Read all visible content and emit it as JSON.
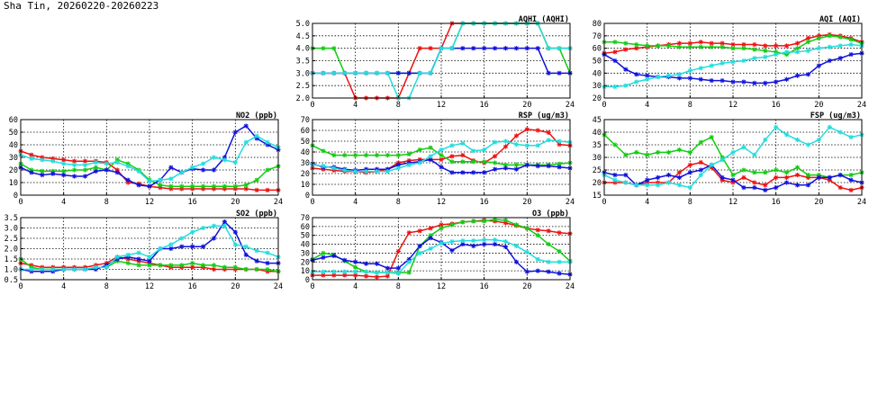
{
  "page": {
    "title": "Sha Tin, 20260220-20260223"
  },
  "colors": {
    "red": "#ee1111",
    "green": "#11cc11",
    "blue": "#1111dd",
    "cyan": "#22dddd",
    "grid": "#000000"
  },
  "chart_data": [
    {
      "id": "aqhi",
      "type": "line",
      "title": "AQHI (AQHI)",
      "xlim": [
        0,
        24
      ],
      "xticks": [
        0,
        4,
        8,
        12,
        16,
        20,
        24
      ],
      "ylim": [
        2,
        5
      ],
      "yticks": [
        2.0,
        2.5,
        3.0,
        3.5,
        4.0,
        4.5,
        5.0
      ],
      "ydecimals": 1,
      "grid": true,
      "series": [
        {
          "color": "red",
          "values": [
            3,
            3,
            3,
            3,
            2,
            2,
            2,
            2,
            2,
            3,
            4,
            4,
            4,
            5,
            5,
            5,
            5,
            5,
            5,
            5,
            5,
            5,
            4,
            4,
            4
          ]
        },
        {
          "color": "green",
          "values": [
            4,
            4,
            4,
            3,
            3,
            3,
            3,
            3,
            3,
            3,
            3,
            3,
            4,
            4,
            5,
            5,
            5,
            5,
            5,
            5,
            5,
            5,
            4,
            4,
            3
          ]
        },
        {
          "color": "blue",
          "values": [
            3,
            3,
            3,
            3,
            3,
            3,
            3,
            3,
            3,
            3,
            3,
            3,
            4,
            4,
            4,
            4,
            4,
            4,
            4,
            4,
            4,
            4,
            3,
            3,
            3
          ]
        },
        {
          "color": "cyan",
          "values": [
            3,
            3,
            3,
            3,
            3,
            3,
            3,
            3,
            2,
            2,
            3,
            3,
            4,
            4,
            5,
            5,
            5,
            5,
            5,
            5,
            5,
            5,
            4,
            4,
            4
          ]
        }
      ]
    },
    {
      "id": "aqi",
      "type": "line",
      "title": "AQI (AQI)",
      "xlim": [
        0,
        24
      ],
      "xticks": [
        0,
        4,
        8,
        12,
        16,
        20,
        24
      ],
      "ylim": [
        20,
        80
      ],
      "yticks": [
        20,
        30,
        40,
        50,
        60,
        70,
        80
      ],
      "ydecimals": 0,
      "grid": true,
      "series": [
        {
          "color": "red",
          "values": [
            56,
            57,
            59,
            60,
            61,
            62,
            63,
            64,
            64,
            65,
            64,
            64,
            63,
            63,
            63,
            62,
            62,
            62,
            64,
            68,
            70,
            71,
            70,
            68,
            65
          ]
        },
        {
          "color": "green",
          "values": [
            65,
            65,
            64,
            63,
            62,
            62,
            62,
            61,
            61,
            61,
            61,
            61,
            60,
            60,
            59,
            58,
            57,
            55,
            60,
            65,
            68,
            70,
            69,
            67,
            64
          ]
        },
        {
          "color": "blue",
          "values": [
            55,
            50,
            43,
            39,
            38,
            37,
            37,
            36,
            36,
            35,
            34,
            34,
            33,
            33,
            32,
            32,
            33,
            35,
            38,
            39,
            46,
            50,
            52,
            55,
            56
          ]
        },
        {
          "color": "cyan",
          "values": [
            29,
            29,
            30,
            33,
            35,
            37,
            38,
            39,
            42,
            44,
            46,
            48,
            49,
            50,
            52,
            53,
            55,
            57,
            57,
            58,
            60,
            61,
            62,
            63,
            62
          ]
        }
      ]
    },
    {
      "id": "no2",
      "type": "line",
      "title": "NO2 (ppb)",
      "xlim": [
        0,
        24
      ],
      "xticks": [
        0,
        4,
        8,
        12,
        16,
        20,
        24
      ],
      "ylim": [
        0,
        60
      ],
      "yticks": [
        0,
        10,
        20,
        30,
        40,
        50,
        60
      ],
      "ydecimals": 0,
      "grid": true,
      "series": [
        {
          "color": "red",
          "values": [
            35,
            32,
            30,
            29,
            28,
            27,
            27,
            27,
            26,
            20,
            10,
            9,
            7,
            6,
            5,
            5,
            5,
            5,
            5,
            5,
            5,
            5,
            4,
            4,
            4
          ]
        },
        {
          "color": "green",
          "values": [
            25,
            20,
            19,
            19,
            19,
            20,
            20,
            22,
            20,
            28,
            25,
            20,
            12,
            8,
            7,
            7,
            7,
            7,
            7,
            7,
            7,
            8,
            12,
            20,
            23
          ]
        },
        {
          "color": "blue",
          "values": [
            22,
            18,
            16,
            17,
            16,
            15,
            15,
            19,
            20,
            18,
            12,
            8,
            7,
            12,
            22,
            18,
            21,
            20,
            20,
            30,
            50,
            55,
            45,
            40,
            36
          ]
        },
        {
          "color": "cyan",
          "values": [
            32,
            29,
            28,
            27,
            25,
            24,
            24,
            26,
            25,
            26,
            23,
            19,
            11,
            12,
            13,
            18,
            22,
            25,
            30,
            28,
            26,
            42,
            47,
            42,
            38
          ]
        }
      ]
    },
    {
      "id": "rsp",
      "type": "line",
      "title": "RSP (ug/m3)",
      "xlim": [
        0,
        24
      ],
      "xticks": [
        0,
        4,
        8,
        12,
        16,
        20,
        24
      ],
      "ylim": [
        0,
        70
      ],
      "yticks": [
        0,
        10,
        20,
        30,
        40,
        50,
        60,
        70
      ],
      "ydecimals": 0,
      "grid": true,
      "series": [
        {
          "color": "red",
          "values": [
            25,
            24,
            23,
            22,
            22,
            21,
            22,
            24,
            30,
            32,
            33,
            33,
            33,
            36,
            37,
            32,
            30,
            36,
            45,
            55,
            61,
            60,
            58,
            47,
            46
          ]
        },
        {
          "color": "green",
          "values": [
            46,
            41,
            37,
            37,
            37,
            37,
            37,
            37,
            37,
            38,
            42,
            44,
            37,
            31,
            31,
            31,
            31,
            30,
            28,
            28,
            28,
            28,
            28,
            29,
            30
          ]
        },
        {
          "color": "blue",
          "values": [
            29,
            26,
            26,
            24,
            23,
            24,
            24,
            24,
            28,
            30,
            31,
            33,
            26,
            21,
            21,
            21,
            21,
            24,
            25,
            24,
            28,
            27,
            27,
            26,
            25
          ]
        },
        {
          "color": "cyan",
          "values": [
            28,
            27,
            25,
            23,
            22,
            22,
            22,
            22,
            25,
            28,
            30,
            36,
            42,
            46,
            48,
            41,
            42,
            49,
            50,
            47,
            46,
            46,
            51,
            50,
            49
          ]
        }
      ]
    },
    {
      "id": "fsp",
      "type": "line",
      "title": "FSP (ug/m3)",
      "xlim": [
        0,
        24
      ],
      "xticks": [
        0,
        4,
        8,
        12,
        16,
        20,
        24
      ],
      "ylim": [
        15,
        45
      ],
      "yticks": [
        15,
        20,
        25,
        30,
        35,
        40,
        45
      ],
      "ydecimals": 0,
      "grid": true,
      "series": [
        {
          "color": "red",
          "values": [
            20,
            20,
            20,
            19,
            20,
            20,
            20,
            24,
            27,
            28,
            26,
            21,
            20,
            22,
            20,
            19,
            22,
            22,
            23,
            22,
            22,
            21,
            18,
            17,
            18
          ]
        },
        {
          "color": "green",
          "values": [
            39,
            35,
            31,
            32,
            31,
            32,
            32,
            33,
            32,
            36,
            38,
            30,
            23,
            25,
            24,
            24,
            25,
            24,
            26,
            23,
            23,
            22,
            23,
            23,
            24
          ]
        },
        {
          "color": "blue",
          "values": [
            24,
            23,
            23,
            19,
            21,
            22,
            23,
            22,
            24,
            25,
            27,
            22,
            21,
            18,
            18,
            17,
            18,
            20,
            19,
            19,
            22,
            22,
            23,
            21,
            20
          ]
        },
        {
          "color": "cyan",
          "values": [
            23,
            21,
            20,
            19,
            19,
            19,
            20,
            19,
            18,
            23,
            27,
            29,
            32,
            34,
            31,
            37,
            42,
            39,
            37,
            35,
            37,
            42,
            40,
            38,
            39
          ]
        }
      ]
    },
    {
      "id": "so2",
      "type": "line",
      "title": "SO2 (ppb)",
      "xlim": [
        0,
        24
      ],
      "xticks": [
        0,
        4,
        8,
        12,
        16,
        20,
        24
      ],
      "ylim": [
        0.5,
        3.5
      ],
      "yticks": [
        0.5,
        1.0,
        1.5,
        2.0,
        2.5,
        3.0,
        3.5
      ],
      "ydecimals": 1,
      "grid": true,
      "series": [
        {
          "color": "red",
          "values": [
            1.3,
            1.2,
            1.1,
            1.1,
            1.1,
            1.1,
            1.1,
            1.2,
            1.3,
            1.6,
            1.5,
            1.4,
            1.3,
            1.2,
            1.1,
            1.1,
            1.1,
            1.1,
            1.0,
            1.0,
            1.0,
            1.0,
            1.0,
            0.9,
            0.9
          ]
        },
        {
          "color": "green",
          "values": [
            1.5,
            1.1,
            1.0,
            1.0,
            1.0,
            1.0,
            1.0,
            1.1,
            1.1,
            1.4,
            1.3,
            1.2,
            1.2,
            1.2,
            1.2,
            1.2,
            1.3,
            1.2,
            1.2,
            1.1,
            1.1,
            1.0,
            1.0,
            1.0,
            0.9
          ]
        },
        {
          "color": "blue",
          "values": [
            1.0,
            0.9,
            0.9,
            0.9,
            1.0,
            1.0,
            1.0,
            1.0,
            1.2,
            1.5,
            1.6,
            1.5,
            1.4,
            2.0,
            2.0,
            2.1,
            2.1,
            2.1,
            2.5,
            3.3,
            2.8,
            1.7,
            1.4,
            1.3,
            1.3
          ]
        },
        {
          "color": "cyan",
          "values": [
            1.0,
            1.0,
            1.0,
            1.0,
            1.0,
            1.0,
            1.0,
            1.1,
            1.1,
            1.6,
            1.7,
            1.8,
            1.6,
            2.0,
            2.2,
            2.5,
            2.8,
            3.0,
            3.1,
            3.1,
            2.2,
            2.1,
            1.9,
            1.8,
            1.6
          ]
        }
      ]
    },
    {
      "id": "o3",
      "type": "line",
      "title": "O3 (ppb)",
      "xlim": [
        0,
        24
      ],
      "xticks": [
        0,
        4,
        8,
        12,
        16,
        20,
        24
      ],
      "ylim": [
        0,
        70
      ],
      "yticks": [
        0,
        10,
        20,
        30,
        40,
        50,
        60,
        70
      ],
      "ydecimals": 0,
      "grid": true,
      "series": [
        {
          "color": "red",
          "values": [
            5,
            5,
            5,
            5,
            5,
            4,
            3,
            4,
            32,
            53,
            55,
            58,
            62,
            63,
            65,
            66,
            67,
            66,
            64,
            61,
            58,
            56,
            55,
            53,
            52
          ]
        },
        {
          "color": "green",
          "values": [
            23,
            30,
            28,
            21,
            14,
            9,
            8,
            8,
            8,
            8,
            38,
            50,
            58,
            62,
            65,
            66,
            66,
            68,
            67,
            62,
            58,
            50,
            40,
            32,
            21
          ]
        },
        {
          "color": "blue",
          "values": [
            22,
            25,
            27,
            22,
            20,
            18,
            18,
            13,
            13,
            23,
            38,
            47,
            42,
            33,
            40,
            38,
            40,
            40,
            37,
            20,
            9,
            10,
            9,
            7,
            6
          ]
        },
        {
          "color": "cyan",
          "values": [
            9,
            9,
            9,
            9,
            9,
            9,
            8,
            8,
            7,
            20,
            30,
            35,
            41,
            43,
            44,
            44,
            45,
            45,
            43,
            38,
            31,
            23,
            20,
            20,
            20
          ]
        }
      ]
    }
  ]
}
